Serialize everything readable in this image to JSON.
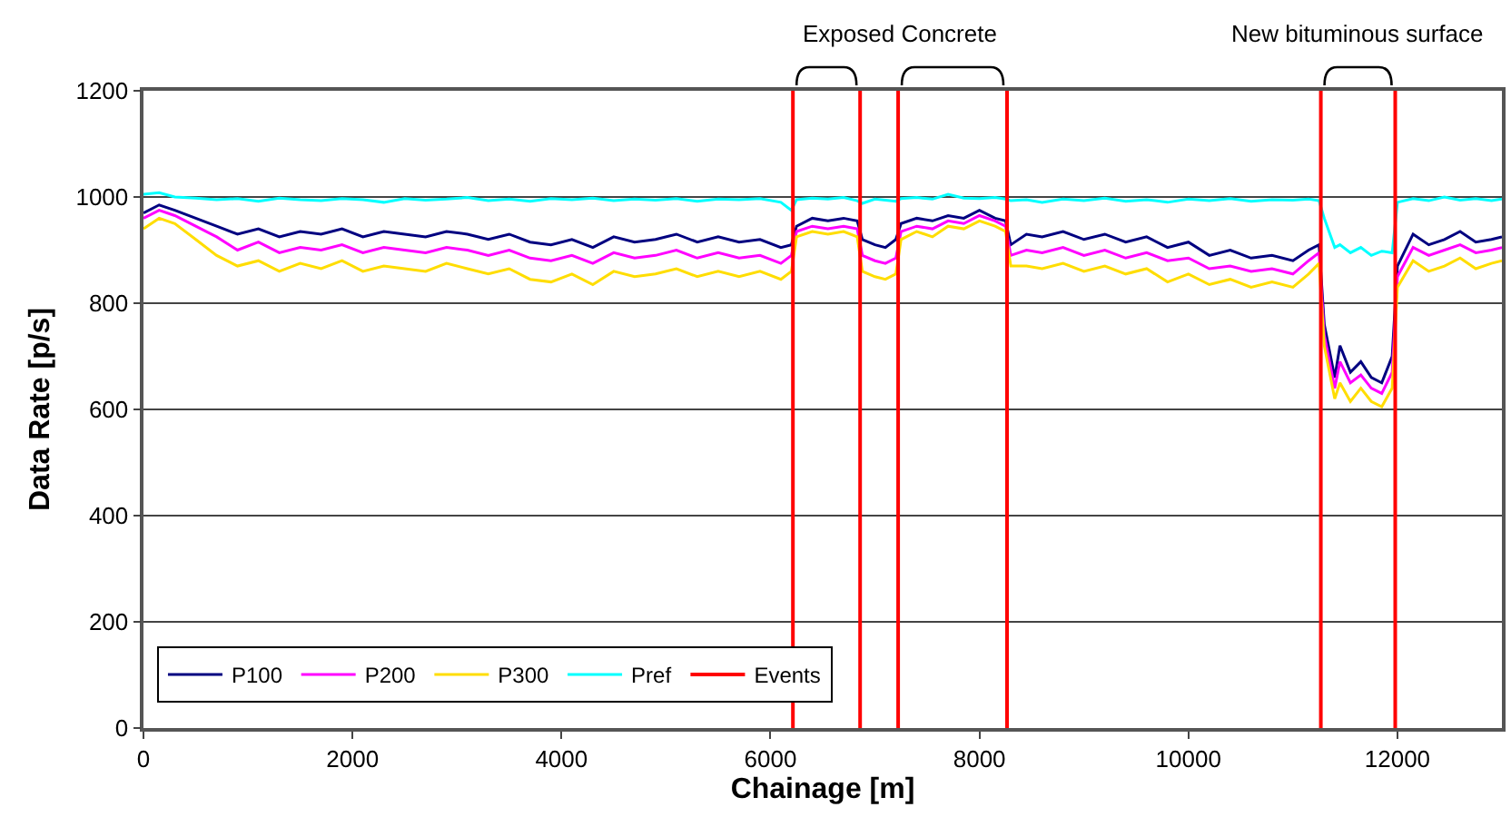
{
  "chart_data": {
    "type": "line",
    "xlabel": "Chainage [m]",
    "ylabel": "Data Rate [p/s]",
    "x": [
      0,
      150,
      300,
      500,
      700,
      900,
      1100,
      1300,
      1500,
      1700,
      1900,
      2100,
      2300,
      2500,
      2700,
      2900,
      3100,
      3300,
      3500,
      3700,
      3900,
      4100,
      4300,
      4500,
      4700,
      4900,
      5100,
      5300,
      5500,
      5700,
      5900,
      6100,
      6200,
      6250,
      6400,
      6550,
      6700,
      6830,
      6880,
      7000,
      7100,
      7200,
      7250,
      7400,
      7550,
      7700,
      7850,
      8000,
      8150,
      8250,
      8300,
      8450,
      8600,
      8800,
      9000,
      9200,
      9400,
      9600,
      9800,
      10000,
      10200,
      10400,
      10600,
      10800,
      11000,
      11150,
      11250,
      11300,
      11400,
      11450,
      11550,
      11650,
      11750,
      11850,
      11950,
      12000,
      12150,
      12300,
      12450,
      12600,
      12750,
      12900,
      13000
    ],
    "series": [
      {
        "name": "P100",
        "color": "#000080",
        "values": [
          970,
          985,
          975,
          960,
          945,
          930,
          940,
          925,
          935,
          930,
          940,
          925,
          935,
          930,
          925,
          935,
          930,
          920,
          930,
          915,
          910,
          920,
          905,
          925,
          915,
          920,
          930,
          915,
          925,
          915,
          920,
          905,
          910,
          945,
          960,
          955,
          960,
          955,
          920,
          910,
          905,
          920,
          950,
          960,
          955,
          965,
          960,
          975,
          960,
          955,
          910,
          930,
          925,
          935,
          920,
          930,
          915,
          925,
          905,
          915,
          890,
          900,
          885,
          890,
          880,
          900,
          910,
          760,
          660,
          720,
          670,
          690,
          660,
          650,
          700,
          870,
          930,
          910,
          920,
          935,
          915,
          920,
          925
        ]
      },
      {
        "name": "P200",
        "color": "#ff00ff",
        "values": [
          960,
          975,
          965,
          945,
          925,
          900,
          915,
          895,
          905,
          900,
          910,
          895,
          905,
          900,
          895,
          905,
          900,
          890,
          900,
          885,
          880,
          890,
          875,
          895,
          885,
          890,
          900,
          885,
          895,
          885,
          890,
          875,
          890,
          935,
          945,
          940,
          945,
          940,
          890,
          880,
          875,
          885,
          935,
          945,
          940,
          955,
          950,
          965,
          955,
          945,
          890,
          900,
          895,
          905,
          890,
          900,
          885,
          895,
          880,
          885,
          865,
          870,
          860,
          865,
          855,
          880,
          895,
          740,
          640,
          690,
          650,
          665,
          640,
          630,
          670,
          850,
          905,
          890,
          900,
          910,
          895,
          900,
          905
        ]
      },
      {
        "name": "P300",
        "color": "#ffdd00",
        "values": [
          940,
          960,
          950,
          920,
          890,
          870,
          880,
          860,
          875,
          865,
          880,
          860,
          870,
          865,
          860,
          875,
          865,
          855,
          865,
          845,
          840,
          855,
          835,
          860,
          850,
          855,
          865,
          850,
          860,
          850,
          860,
          845,
          860,
          925,
          935,
          930,
          935,
          925,
          860,
          850,
          845,
          855,
          920,
          935,
          925,
          945,
          940,
          955,
          945,
          935,
          870,
          870,
          865,
          875,
          860,
          870,
          855,
          865,
          840,
          855,
          835,
          845,
          830,
          840,
          830,
          855,
          875,
          720,
          620,
          650,
          615,
          640,
          615,
          605,
          640,
          830,
          880,
          860,
          870,
          885,
          865,
          875,
          880
        ]
      },
      {
        "name": "Pref",
        "color": "#00ffff",
        "values": [
          1005,
          1008,
          1000,
          998,
          995,
          997,
          992,
          998,
          995,
          993,
          997,
          995,
          990,
          997,
          994,
          996,
          999,
          993,
          996,
          992,
          997,
          995,
          998,
          993,
          996,
          994,
          997,
          992,
          996,
          995,
          997,
          990,
          975,
          995,
          998,
          996,
          999,
          993,
          988,
          996,
          994,
          992,
          997,
          999,
          996,
          1005,
          998,
          997,
          999,
          996,
          993,
          995,
          990,
          996,
          993,
          998,
          992,
          995,
          990,
          996,
          993,
          997,
          992,
          995,
          994,
          996,
          993,
          960,
          905,
          910,
          895,
          905,
          890,
          898,
          895,
          990,
          997,
          993,
          1000,
          994,
          997,
          993,
          996
        ]
      }
    ],
    "ref_lines": [
      {
        "axis": "x",
        "value": 6215,
        "label": "Events",
        "color": "#ff0000"
      },
      {
        "axis": "x",
        "value": 6858,
        "color": "#ff0000"
      },
      {
        "axis": "x",
        "value": 7222,
        "color": "#ff0000"
      },
      {
        "axis": "x",
        "value": 8264,
        "color": "#ff0000"
      },
      {
        "axis": "x",
        "value": 11267,
        "color": "#ff0000"
      },
      {
        "axis": "x",
        "value": 11979,
        "color": "#ff0000"
      }
    ],
    "xlim": [
      0,
      13000
    ],
    "xticks": [
      0,
      2000,
      4000,
      6000,
      8000,
      10000,
      12000
    ],
    "ylim": [
      0,
      1200
    ],
    "yticks": [
      0,
      200,
      400,
      600,
      800,
      1000,
      1200
    ],
    "grid": "y",
    "legend": "bottom left",
    "marker": "none",
    "line_style": "solid",
    "annotations": [
      "Exposed Concrete",
      "New bituminous surface"
    ]
  }
}
